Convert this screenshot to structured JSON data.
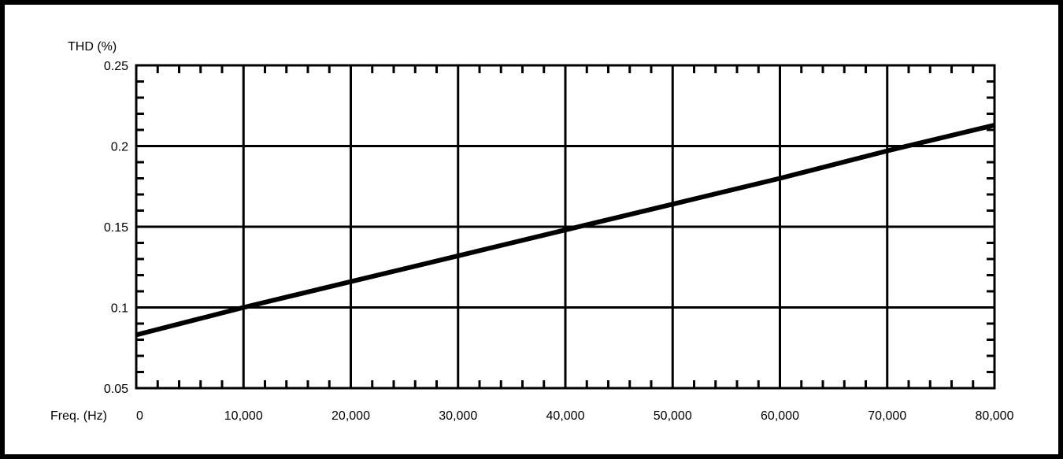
{
  "chart_data": {
    "type": "line",
    "title": "",
    "xlabel": "Freq. (Hz)",
    "ylabel": "THD (%)",
    "xlim": [
      0,
      80000
    ],
    "ylim": [
      0.05,
      0.25
    ],
    "x_ticks": [
      0,
      10000,
      20000,
      30000,
      40000,
      50000,
      60000,
      70000,
      80000
    ],
    "x_tick_labels": [
      "0",
      "10,000",
      "20,000",
      "30,000",
      "40,000",
      "50,000",
      "60,000",
      "70,000",
      "80,000"
    ],
    "y_ticks": [
      0.05,
      0.1,
      0.15,
      0.2,
      0.25
    ],
    "y_tick_labels": [
      "0.05",
      "0.1",
      "0.15",
      "0.2",
      "0.25"
    ],
    "x_minor_step": 2000,
    "y_minor_step": 0.01,
    "grid": true,
    "legend": "none",
    "series": [
      {
        "x": [
          0,
          10000,
          20000,
          30000,
          40000,
          50000,
          60000,
          70000,
          80000
        ],
        "y": [
          0.083,
          0.1,
          0.116,
          0.132,
          0.148,
          0.164,
          0.18,
          0.197,
          0.213
        ],
        "color": "#000000"
      }
    ]
  }
}
